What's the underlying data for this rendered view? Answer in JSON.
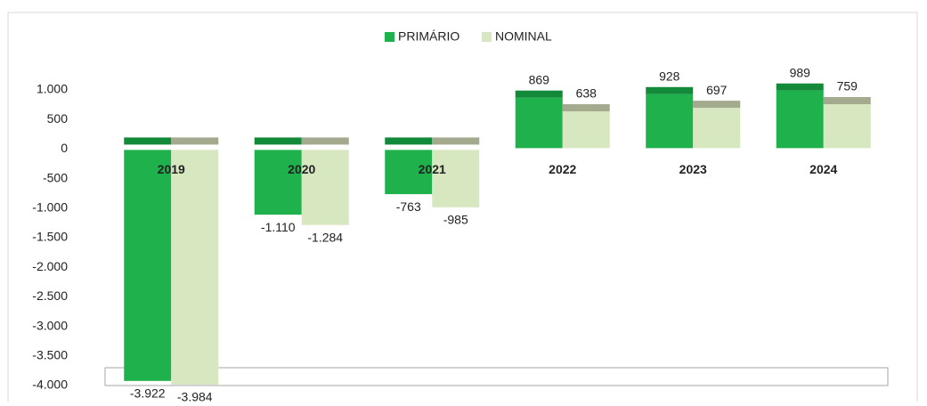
{
  "chart_data": {
    "type": "bar",
    "categories": [
      "2019",
      "2020",
      "2021",
      "2022",
      "2023",
      "2024"
    ],
    "series": [
      {
        "name": "PRIMÁRIO",
        "color": "#1fb14b",
        "values": [
          -3922,
          -1110,
          -763,
          869,
          928,
          989
        ],
        "value_labels": [
          "-3.922",
          "-1.110",
          "-763",
          "869",
          "928",
          "989"
        ]
      },
      {
        "name": "NOMINAL",
        "color": "#d7e7c0",
        "values": [
          -3984,
          -1284,
          -985,
          638,
          697,
          759
        ],
        "value_labels": [
          "-3.984",
          "-1.284",
          "-985",
          "638",
          "697",
          "759"
        ]
      }
    ],
    "ylim": [
      -4000,
      1000
    ],
    "yticks": [
      {
        "value": 1000,
        "label": "1.000"
      },
      500,
      0,
      -500,
      {
        "value": -1000,
        "label": "-1.000"
      },
      {
        "value": -1500,
        "label": "-1.500"
      },
      {
        "value": -2000,
        "label": "-2.000"
      },
      {
        "value": -2500,
        "label": "-2.500"
      },
      {
        "value": -3000,
        "label": "-3.000"
      },
      {
        "value": -3500,
        "label": "-3.500"
      },
      {
        "value": -4000,
        "label": "-4.000"
      }
    ],
    "legend": "top"
  }
}
